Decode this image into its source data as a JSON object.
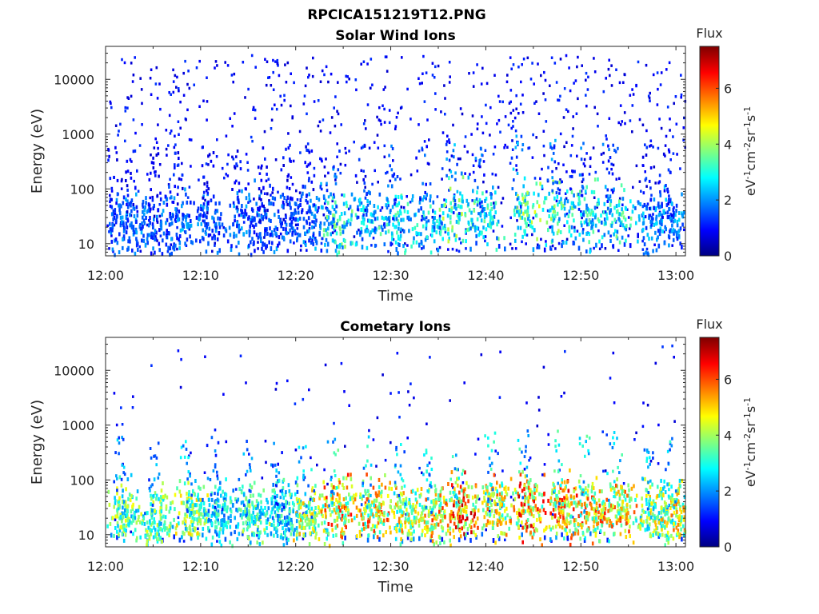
{
  "title": "RPCICA151219T12.PNG",
  "chart_data": [
    {
      "type": "heatmap",
      "title": "Solar Wind Ions",
      "xlabel": "Time",
      "ylabel": "Energy (eV)",
      "x_ticks": [
        "12:00",
        "12:10",
        "12:20",
        "12:30",
        "12:40",
        "12:50",
        "13:00"
      ],
      "xlim_minutes": [
        0,
        61
      ],
      "y_ticks": [
        "10",
        "100",
        "1000",
        "10000"
      ],
      "yscale": "log",
      "ylim": [
        6,
        40000
      ],
      "colorbar": {
        "title": "Flux",
        "label": "eV-1cm-2sr-1s-1",
        "ticks": [
          "0",
          "2",
          "4",
          "6"
        ],
        "range": [
          0,
          7.5
        ],
        "colormap": "jet"
      },
      "bursts": [
        {
          "t": 1.0,
          "e": 25,
          "v": 2.0
        },
        {
          "t": 3.0,
          "e": 25,
          "v": 2.2
        },
        {
          "t": 5.5,
          "e": 20,
          "v": 2.0
        },
        {
          "t": 8.0,
          "e": 25,
          "v": 2.3
        },
        {
          "t": 11.0,
          "e": 28,
          "v": 2.0
        },
        {
          "t": 14.5,
          "e": 25,
          "v": 2.2
        },
        {
          "t": 17.0,
          "e": 25,
          "v": 2.0
        },
        {
          "t": 19.5,
          "e": 25,
          "v": 2.0
        },
        {
          "t": 22.0,
          "e": 25,
          "v": 2.3
        },
        {
          "t": 24.5,
          "e": 22,
          "v": 3.8
        },
        {
          "t": 27.5,
          "e": 28,
          "v": 3.0
        },
        {
          "t": 30.5,
          "e": 25,
          "v": 3.5
        },
        {
          "t": 34.0,
          "e": 25,
          "v": 3.2
        },
        {
          "t": 37.0,
          "e": 35,
          "v": 4.2
        },
        {
          "t": 40.0,
          "e": 30,
          "v": 3.6
        },
        {
          "t": 44.0,
          "e": 38,
          "v": 4.4
        },
        {
          "t": 47.5,
          "e": 35,
          "v": 4.0
        },
        {
          "t": 50.5,
          "e": 30,
          "v": 3.5
        },
        {
          "t": 53.5,
          "e": 35,
          "v": 3.6
        },
        {
          "t": 57.5,
          "e": 25,
          "v": 2.6
        },
        {
          "t": 59.5,
          "e": 25,
          "v": 2.5
        }
      ],
      "background": {
        "density": "high",
        "value": 0.9
      }
    },
    {
      "type": "heatmap",
      "title": "Cometary Ions",
      "xlabel": "Time",
      "ylabel": "Energy (eV)",
      "x_ticks": [
        "12:00",
        "12:10",
        "12:20",
        "12:30",
        "12:40",
        "12:50",
        "13:00"
      ],
      "xlim_minutes": [
        0,
        61
      ],
      "y_ticks": [
        "10",
        "100",
        "1000",
        "10000"
      ],
      "yscale": "log",
      "ylim": [
        6,
        40000
      ],
      "colorbar": {
        "title": "Flux",
        "label": "eV-1cm-2sr-1s-1",
        "ticks": [
          "0",
          "2",
          "4",
          "6"
        ],
        "range": [
          0,
          7.5
        ],
        "colormap": "jet"
      },
      "bursts": [
        {
          "t": 2.0,
          "e": 25,
          "v": 4.5
        },
        {
          "t": 5.5,
          "e": 20,
          "v": 4.5
        },
        {
          "t": 9.0,
          "e": 25,
          "v": 4.8
        },
        {
          "t": 12.0,
          "e": 25,
          "v": 3.5
        },
        {
          "t": 15.5,
          "e": 22,
          "v": 4.2
        },
        {
          "t": 18.5,
          "e": 25,
          "v": 3.5
        },
        {
          "t": 21.5,
          "e": 20,
          "v": 5.2
        },
        {
          "t": 24.5,
          "e": 25,
          "v": 6.2
        },
        {
          "t": 28.0,
          "e": 30,
          "v": 6.0
        },
        {
          "t": 31.5,
          "e": 25,
          "v": 5.5
        },
        {
          "t": 34.5,
          "e": 22,
          "v": 6.0
        },
        {
          "t": 37.5,
          "e": 30,
          "v": 6.8
        },
        {
          "t": 41.0,
          "e": 30,
          "v": 5.8
        },
        {
          "t": 44.5,
          "e": 32,
          "v": 6.6
        },
        {
          "t": 48.0,
          "e": 32,
          "v": 6.4
        },
        {
          "t": 51.0,
          "e": 25,
          "v": 6.0
        },
        {
          "t": 54.0,
          "e": 30,
          "v": 6.2
        },
        {
          "t": 57.5,
          "e": 25,
          "v": 5.0
        },
        {
          "t": 60.0,
          "e": 25,
          "v": 5.5
        }
      ],
      "background": {
        "density": "low",
        "value": 0.9
      }
    }
  ]
}
